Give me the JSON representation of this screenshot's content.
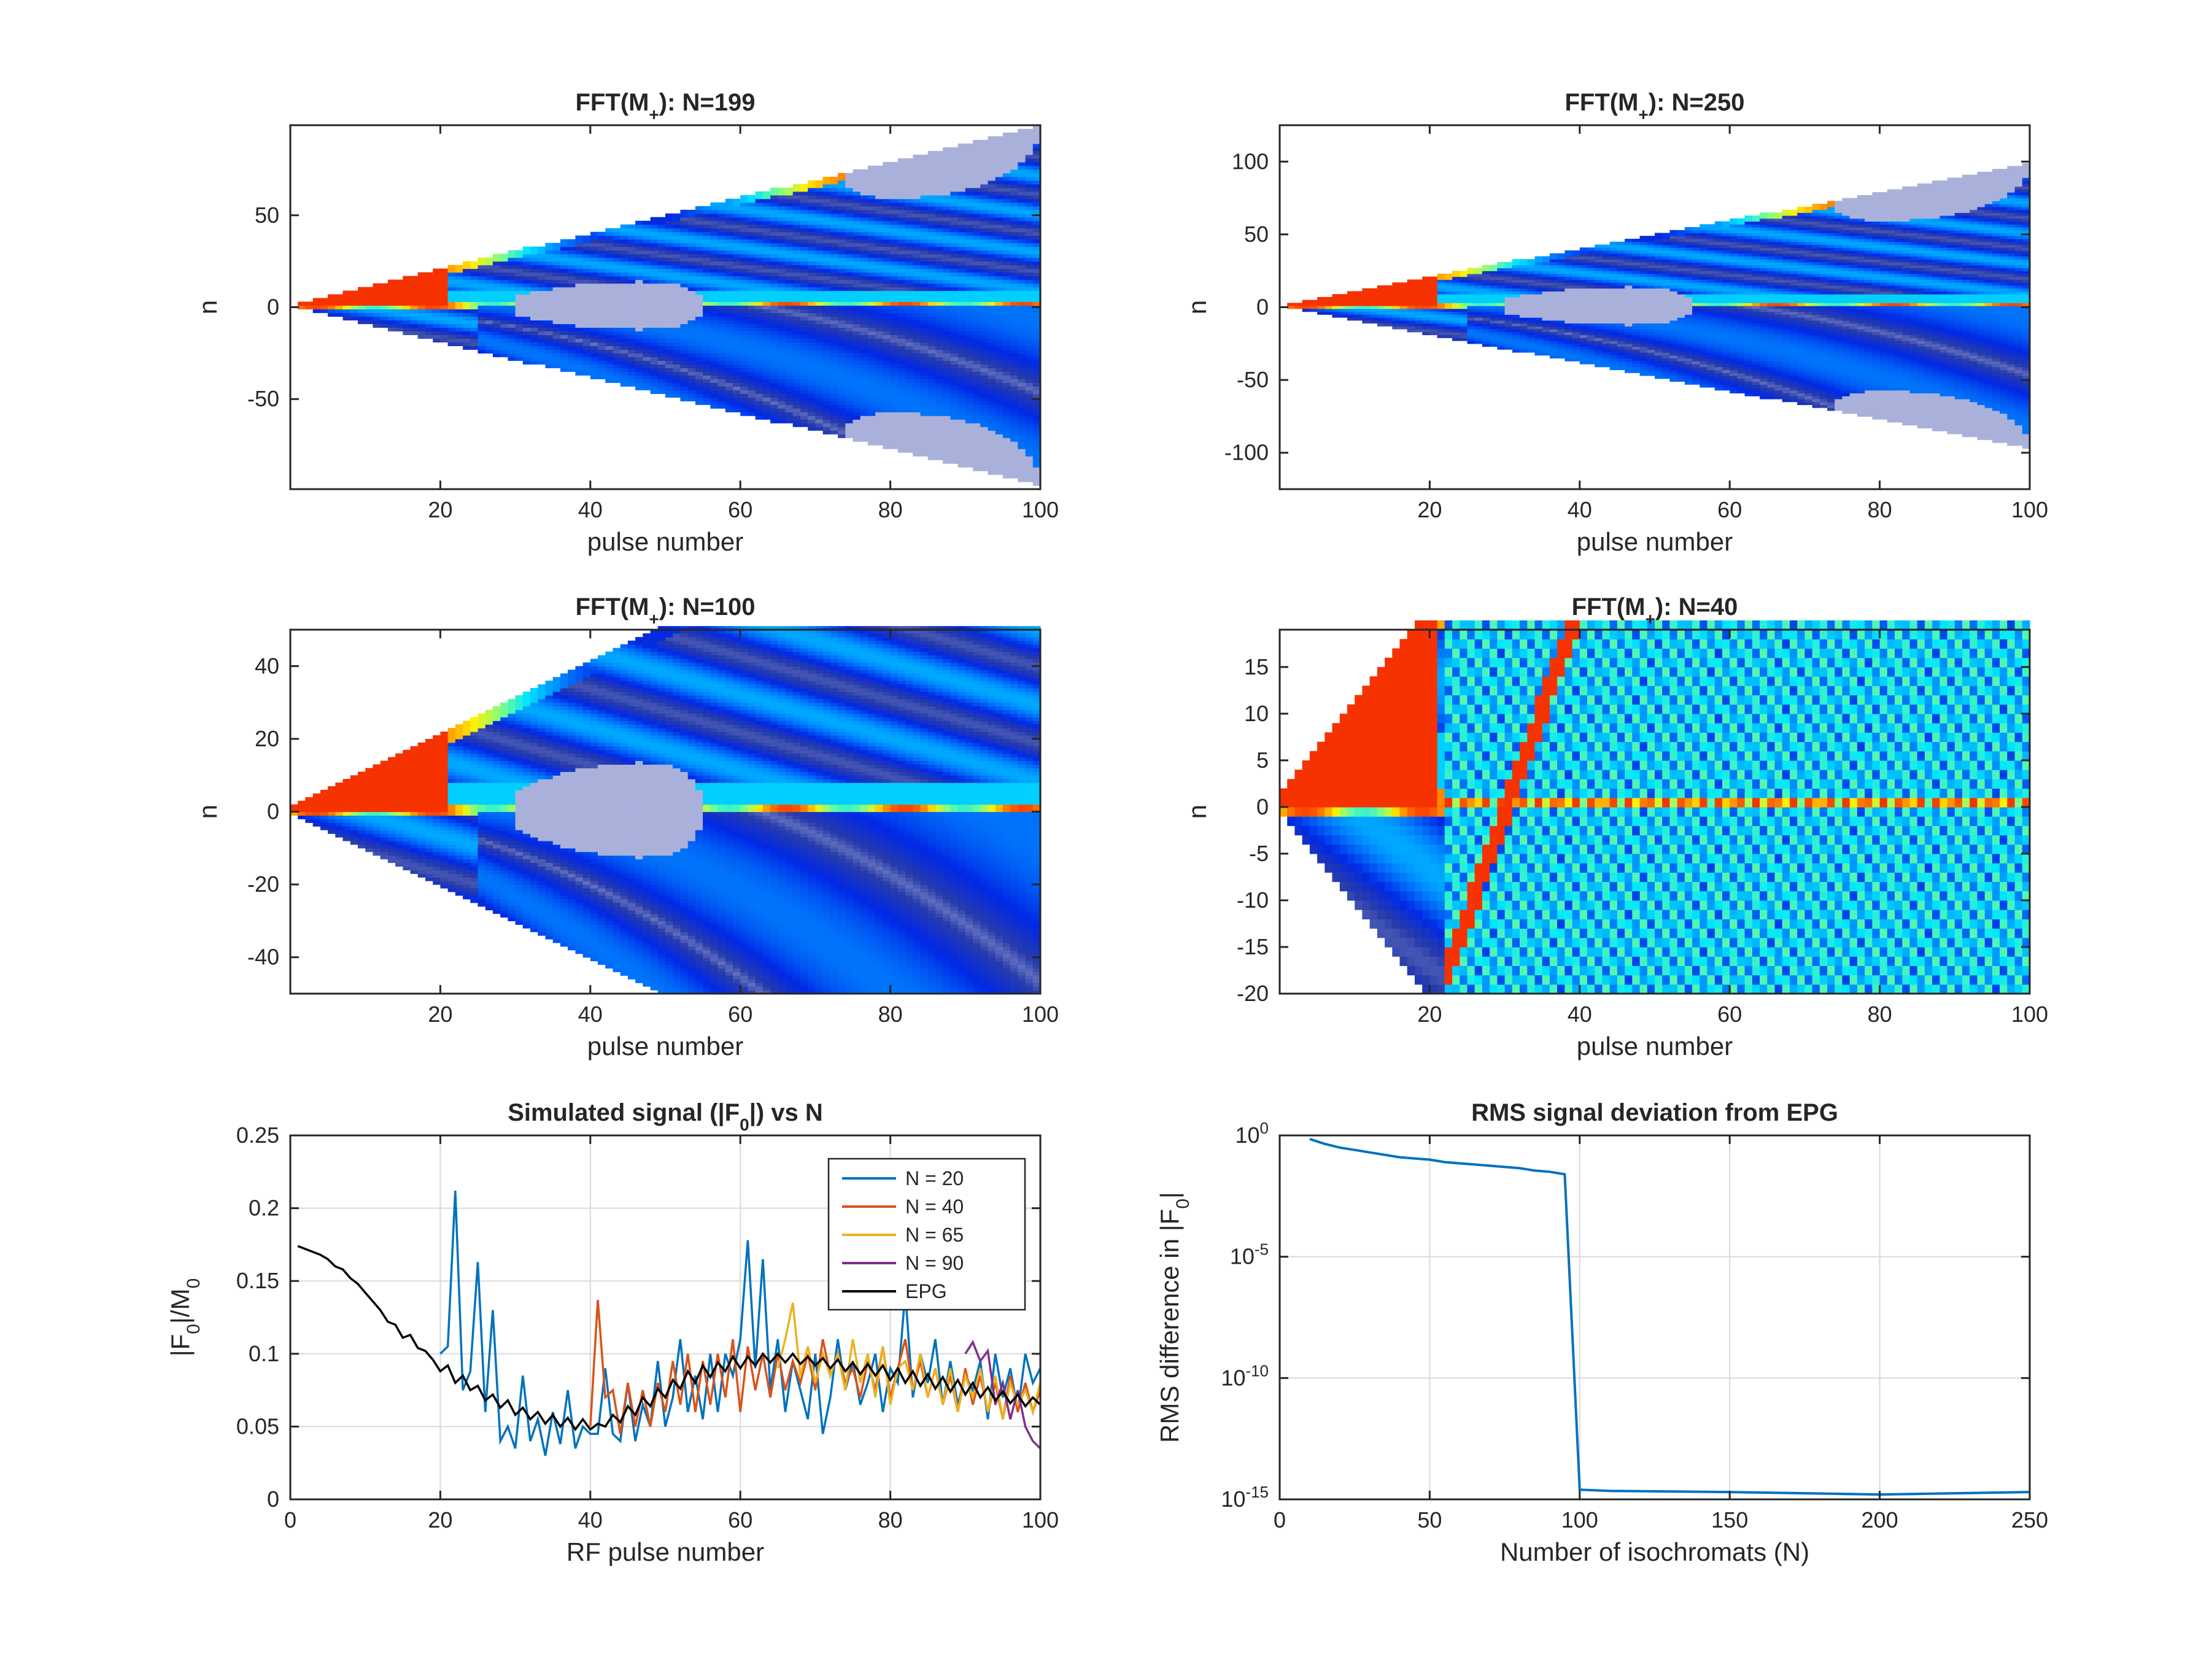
{
  "chart_data": [
    {
      "type": "heatmap",
      "title_main": "FFT(M",
      "title_sub": "+",
      "title_rest": "): N=199",
      "xlabel": "pulse number",
      "ylabel": "n",
      "xlim": [
        0,
        100
      ],
      "ylim": [
        -99,
        99
      ],
      "xticks": [
        20,
        40,
        60,
        80,
        100
      ],
      "yticks": [
        -50,
        0,
        50
      ],
      "N": 199,
      "cell_x": 1,
      "cell_y": 2
    },
    {
      "type": "heatmap",
      "title_main": "FFT(M",
      "title_sub": "+",
      "title_rest": "): N=250",
      "xlabel": "pulse number",
      "ylabel": "n",
      "xlim": [
        0,
        100
      ],
      "ylim": [
        -125,
        125
      ],
      "xticks": [
        20,
        40,
        60,
        80,
        100
      ],
      "yticks": [
        -100,
        -50,
        0,
        50,
        100
      ],
      "N": 250,
      "cell_x": 1,
      "cell_y": 2
    },
    {
      "type": "heatmap",
      "title_main": "FFT(M",
      "title_sub": "+",
      "title_rest": "): N=100",
      "xlabel": "pulse number",
      "ylabel": "n",
      "xlim": [
        0,
        100
      ],
      "ylim": [
        -50,
        50
      ],
      "xticks": [
        20,
        40,
        60,
        80,
        100
      ],
      "yticks": [
        -40,
        -20,
        0,
        20,
        40
      ],
      "N": 100,
      "cell_x": 1,
      "cell_y": 1
    },
    {
      "type": "heatmap",
      "title_main": "FFT(M",
      "title_sub": "+",
      "title_rest": "): N=40",
      "xlabel": "pulse number",
      "ylabel": "n",
      "xlim": [
        0,
        100
      ],
      "ylim": [
        -20,
        19
      ],
      "xticks": [
        20,
        40,
        60,
        80,
        100
      ],
      "yticks": [
        -20,
        -15,
        -10,
        -5,
        0,
        5,
        10,
        15
      ],
      "N": 40,
      "cell_x": 1,
      "cell_y": 1
    },
    {
      "type": "line",
      "title_main": "Simulated signal (|F",
      "title_sub": "0",
      "title_rest": "|) vs N",
      "xlabel": "RF pulse number",
      "ylabel_main": "|F",
      "ylabel_sub": "0",
      "ylabel_mid": "|/M",
      "ylabel_sub2": "0",
      "xlim": [
        0,
        100
      ],
      "ylim": [
        0,
        0.25
      ],
      "xticks": [
        0,
        20,
        40,
        60,
        80,
        100
      ],
      "xtick_labels": [
        "0",
        "20",
        "40",
        "60",
        "80",
        "100"
      ],
      "yticks": [
        0,
        0.05,
        0.1,
        0.15,
        0.2,
        0.25
      ],
      "ytick_labels": [
        "0",
        "0.05",
        "0.1",
        "0.15",
        "0.2",
        "0.25"
      ],
      "grid": true,
      "legend_position": "top-right",
      "series": [
        {
          "name": "N = 20",
          "color": "#0072bd",
          "x": [
            20,
            21,
            22,
            23,
            24,
            25,
            26,
            27,
            28,
            29,
            30,
            31,
            32,
            33,
            34,
            35,
            36,
            37,
            38,
            39,
            40,
            41,
            42,
            43,
            44,
            45,
            46,
            47,
            48,
            49,
            50,
            51,
            52,
            53,
            54,
            55,
            56,
            57,
            58,
            59,
            60,
            61,
            62,
            63,
            64,
            65,
            66,
            67,
            68,
            69,
            70,
            71,
            72,
            73,
            74,
            75,
            76,
            77,
            78,
            79,
            80,
            81,
            82,
            83,
            84,
            85,
            86,
            87,
            88,
            89,
            90,
            91,
            92,
            93,
            94,
            95,
            96,
            97,
            98,
            99,
            100
          ],
          "y": [
            0.1,
            0.105,
            0.212,
            0.075,
            0.088,
            0.163,
            0.06,
            0.13,
            0.04,
            0.05,
            0.035,
            0.085,
            0.04,
            0.055,
            0.03,
            0.06,
            0.038,
            0.075,
            0.035,
            0.05,
            0.045,
            0.045,
            0.09,
            0.045,
            0.04,
            0.08,
            0.04,
            0.065,
            0.05,
            0.095,
            0.05,
            0.07,
            0.11,
            0.06,
            0.085,
            0.055,
            0.1,
            0.06,
            0.1,
            0.085,
            0.11,
            0.178,
            0.09,
            0.165,
            0.075,
            0.11,
            0.06,
            0.095,
            0.075,
            0.055,
            0.1,
            0.045,
            0.07,
            0.11,
            0.075,
            0.095,
            0.065,
            0.08,
            0.1,
            0.06,
            0.09,
            0.08,
            0.142,
            0.07,
            0.1,
            0.08,
            0.11,
            0.065,
            0.095,
            0.065,
            0.085,
            0.075,
            0.095,
            0.055,
            0.1,
            0.07,
            0.09,
            0.06,
            0.1,
            0.08,
            0.09
          ]
        },
        {
          "name": "N = 40",
          "color": "#d95319",
          "x": [
            40,
            41,
            42,
            43,
            44,
            45,
            46,
            47,
            48,
            49,
            50,
            51,
            52,
            53,
            54,
            55,
            56,
            57,
            58,
            59,
            60,
            61,
            62,
            63,
            64,
            65,
            66,
            67,
            68,
            69,
            70,
            71,
            72,
            73,
            74,
            75,
            76,
            77,
            78,
            79,
            80,
            81,
            82,
            83,
            84,
            85,
            86,
            87,
            88,
            89,
            90,
            91,
            92,
            93,
            94,
            95,
            96,
            97,
            98,
            99,
            100
          ],
          "y": [
            0.05,
            0.137,
            0.07,
            0.075,
            0.045,
            0.08,
            0.05,
            0.075,
            0.05,
            0.08,
            0.06,
            0.095,
            0.065,
            0.1,
            0.06,
            0.095,
            0.065,
            0.1,
            0.07,
            0.11,
            0.06,
            0.105,
            0.075,
            0.1,
            0.07,
            0.1,
            0.075,
            0.095,
            0.08,
            0.1,
            0.075,
            0.11,
            0.085,
            0.1,
            0.08,
            0.09,
            0.07,
            0.095,
            0.075,
            0.105,
            0.07,
            0.09,
            0.11,
            0.075,
            0.095,
            0.07,
            0.09,
            0.065,
            0.085,
            0.06,
            0.09,
            0.065,
            0.085,
            0.06,
            0.08,
            0.055,
            0.085,
            0.06,
            0.08,
            0.06,
            0.075
          ]
        },
        {
          "name": "N = 65",
          "color": "#edb120",
          "x": [
            65,
            66,
            67,
            68,
            69,
            70,
            71,
            72,
            73,
            74,
            75,
            76,
            77,
            78,
            79,
            80,
            81,
            82,
            83,
            84,
            85,
            86,
            87,
            88,
            89,
            90,
            91,
            92,
            93,
            94,
            95,
            96,
            97,
            98,
            99,
            100
          ],
          "y": [
            0.09,
            0.11,
            0.135,
            0.085,
            0.105,
            0.08,
            0.1,
            0.085,
            0.1,
            0.075,
            0.11,
            0.08,
            0.1,
            0.07,
            0.105,
            0.065,
            0.09,
            0.095,
            0.075,
            0.1,
            0.07,
            0.09,
            0.065,
            0.09,
            0.06,
            0.085,
            0.07,
            0.09,
            0.06,
            0.085,
            0.055,
            0.08,
            0.065,
            0.075,
            0.06,
            0.08
          ]
        },
        {
          "name": "N = 90",
          "color": "#7e2f8e",
          "x": [
            90,
            91,
            92,
            93,
            94,
            95,
            96,
            97,
            98,
            99,
            100
          ],
          "y": [
            0.1,
            0.108,
            0.095,
            0.102,
            0.065,
            0.08,
            0.055,
            0.075,
            0.05,
            0.04,
            0.035
          ]
        },
        {
          "name": "EPG",
          "color": "#000000",
          "x": [
            1,
            2,
            3,
            4,
            5,
            6,
            7,
            8,
            9,
            10,
            11,
            12,
            13,
            14,
            15,
            16,
            17,
            18,
            19,
            20,
            21,
            22,
            23,
            24,
            25,
            26,
            27,
            28,
            29,
            30,
            31,
            32,
            33,
            34,
            35,
            36,
            37,
            38,
            39,
            40,
            41,
            42,
            43,
            44,
            45,
            46,
            47,
            48,
            49,
            50,
            51,
            52,
            53,
            54,
            55,
            56,
            57,
            58,
            59,
            60,
            61,
            62,
            63,
            64,
            65,
            66,
            67,
            68,
            69,
            70,
            71,
            72,
            73,
            74,
            75,
            76,
            77,
            78,
            79,
            80,
            81,
            82,
            83,
            84,
            85,
            86,
            87,
            88,
            89,
            90,
            91,
            92,
            93,
            94,
            95,
            96,
            97,
            98,
            99,
            100
          ],
          "y": [
            0.174,
            0.172,
            0.17,
            0.168,
            0.165,
            0.16,
            0.158,
            0.152,
            0.148,
            0.142,
            0.136,
            0.13,
            0.122,
            0.12,
            0.111,
            0.113,
            0.104,
            0.102,
            0.096,
            0.088,
            0.092,
            0.08,
            0.085,
            0.075,
            0.078,
            0.068,
            0.072,
            0.063,
            0.068,
            0.058,
            0.063,
            0.055,
            0.06,
            0.052,
            0.058,
            0.05,
            0.056,
            0.048,
            0.055,
            0.048,
            0.052,
            0.05,
            0.058,
            0.053,
            0.064,
            0.058,
            0.07,
            0.064,
            0.076,
            0.07,
            0.082,
            0.076,
            0.088,
            0.08,
            0.092,
            0.084,
            0.094,
            0.088,
            0.098,
            0.09,
            0.098,
            0.092,
            0.1,
            0.094,
            0.1,
            0.094,
            0.1,
            0.093,
            0.098,
            0.092,
            0.097,
            0.09,
            0.096,
            0.088,
            0.094,
            0.086,
            0.093,
            0.085,
            0.092,
            0.082,
            0.09,
            0.08,
            0.088,
            0.078,
            0.086,
            0.076,
            0.084,
            0.074,
            0.082,
            0.072,
            0.08,
            0.07,
            0.077,
            0.068,
            0.074,
            0.066,
            0.072,
            0.064,
            0.07,
            0.065
          ]
        }
      ]
    },
    {
      "type": "line",
      "title_main": "RMS signal deviation from EPG",
      "xlabel": "Number of isochromats (N)",
      "ylabel_main": "RMS difference in |F",
      "ylabel_sub": "0",
      "ylabel_rest": "|",
      "yscale": "log",
      "xlim": [
        0,
        250
      ],
      "ylim_exp": [
        -15,
        0
      ],
      "xticks": [
        0,
        50,
        100,
        150,
        200,
        250
      ],
      "xtick_labels": [
        "0",
        "50",
        "100",
        "150",
        "200",
        "250"
      ],
      "yticks_exp": [
        0,
        -5,
        -10,
        -15
      ],
      "ytick_base": "10",
      "ytick_exps": [
        "0",
        "-5",
        "-10",
        "-15"
      ],
      "grid": true,
      "series": [
        {
          "name": "RMS",
          "color": "#0072bd",
          "x": [
            10,
            15,
            20,
            25,
            30,
            35,
            40,
            45,
            50,
            55,
            60,
            65,
            70,
            75,
            80,
            85,
            90,
            95,
            100,
            110,
            150,
            200,
            250
          ],
          "log10y": [
            -0.15,
            -0.35,
            -0.5,
            -0.6,
            -0.7,
            -0.8,
            -0.9,
            -0.95,
            -1.0,
            -1.1,
            -1.15,
            -1.2,
            -1.25,
            -1.3,
            -1.35,
            -1.45,
            -1.5,
            -1.6,
            -14.6,
            -14.65,
            -14.7,
            -14.8,
            -14.7
          ]
        }
      ]
    }
  ]
}
